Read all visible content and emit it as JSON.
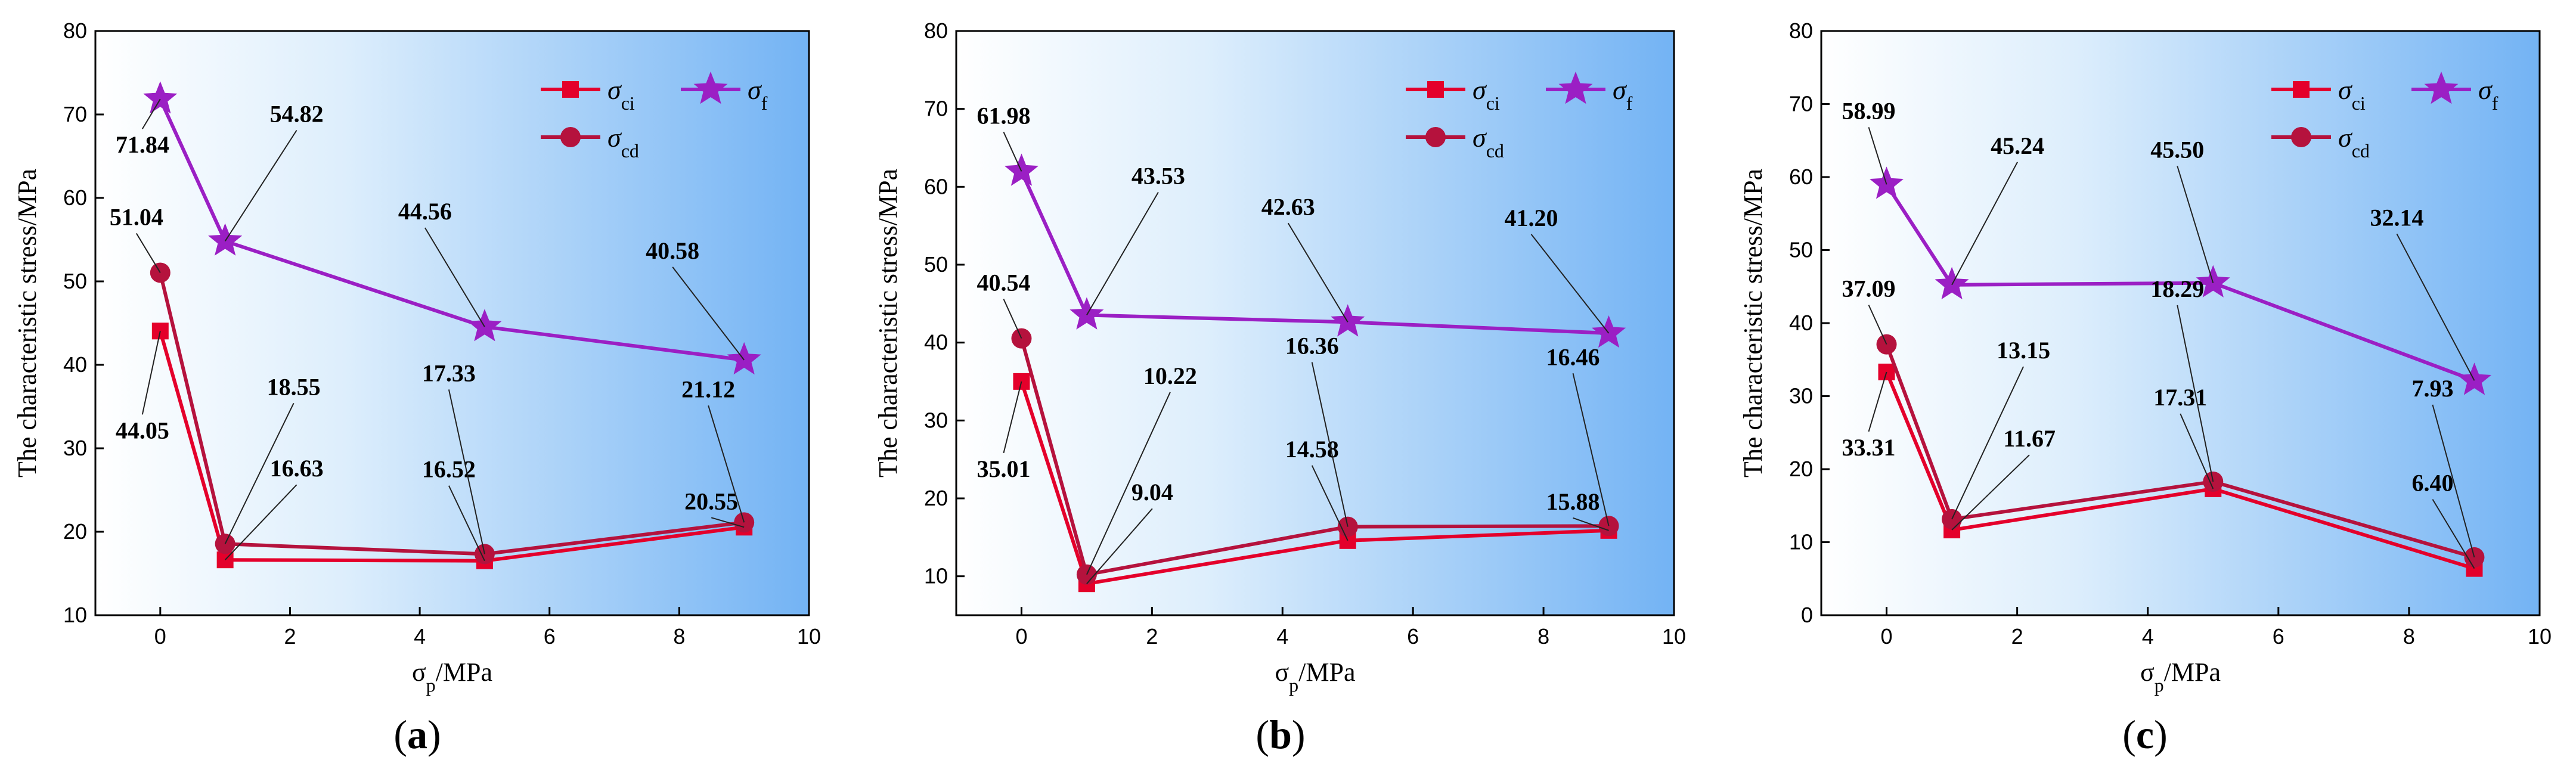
{
  "colors": {
    "sigma_ci": "#e4002b",
    "sigma_cd": "#b5123d",
    "sigma_f": "#9b1fc4",
    "bg_light": "#ffffff",
    "bg_dark": "#7ab8f5"
  },
  "chart_data": [
    {
      "type": "line",
      "panel_label": "a",
      "xlabel": "σp/MPa",
      "ylabel": "The characteristic stress/MPa",
      "xlim": [
        -1,
        10
      ],
      "ylim": [
        10,
        80
      ],
      "xticks": [
        "0",
        "2",
        "4",
        "6",
        "8",
        "10"
      ],
      "yticks": [
        "10",
        "20",
        "30",
        "40",
        "50",
        "60",
        "70",
        "80"
      ],
      "x": [
        0,
        1,
        5,
        9
      ],
      "series": [
        {
          "key": "ci",
          "name": "σci",
          "values": [
            44.05,
            16.63,
            16.52,
            20.55
          ],
          "labels": [
            "44.05",
            "16.63",
            "16.52",
            "20.55"
          ]
        },
        {
          "key": "cd",
          "name": "σcd",
          "values": [
            51.04,
            18.55,
            17.33,
            21.12
          ],
          "labels": [
            "51.04",
            "18.55",
            "17.33",
            "21.12"
          ]
        },
        {
          "key": "f",
          "name": "σf",
          "values": [
            71.84,
            54.82,
            44.56,
            40.58
          ],
          "labels": [
            "71.84",
            "54.82",
            "44.56",
            "40.58"
          ]
        }
      ]
    },
    {
      "type": "line",
      "panel_label": "b",
      "xlabel": "σp/MPa",
      "ylabel": "The characteristic stress/MPa",
      "xlim": [
        -1,
        10
      ],
      "ylim": [
        5,
        80
      ],
      "xticks": [
        "0",
        "2",
        "4",
        "6",
        "8",
        "10"
      ],
      "yticks": [
        "10",
        "20",
        "30",
        "40",
        "50",
        "60",
        "70",
        "80"
      ],
      "x": [
        0,
        1,
        5,
        9
      ],
      "series": [
        {
          "key": "ci",
          "name": "σci",
          "values": [
            35.01,
            9.04,
            14.58,
            15.88
          ],
          "labels": [
            "35.01",
            "9.04",
            "14.58",
            "15.88"
          ]
        },
        {
          "key": "cd",
          "name": "σcd",
          "values": [
            40.54,
            10.22,
            16.36,
            16.46
          ],
          "labels": [
            "40.54",
            "10.22",
            "16.36",
            "16.46"
          ]
        },
        {
          "key": "f",
          "name": "σf",
          "values": [
            61.98,
            43.53,
            42.63,
            41.2
          ],
          "labels": [
            "61.98",
            "43.53",
            "42.63",
            "41.20"
          ]
        }
      ]
    },
    {
      "type": "line",
      "panel_label": "c",
      "xlabel": "σp/MPa",
      "ylabel": "The characteristic stress/MPa",
      "xlim": [
        -1,
        10
      ],
      "ylim": [
        0,
        80
      ],
      "xticks": [
        "0",
        "2",
        "4",
        "6",
        "8",
        "10"
      ],
      "yticks": [
        "0",
        "10",
        "20",
        "30",
        "40",
        "50",
        "60",
        "70",
        "80"
      ],
      "x": [
        0,
        1,
        5,
        9
      ],
      "series": [
        {
          "key": "ci",
          "name": "σci",
          "values": [
            33.31,
            11.67,
            17.31,
            6.4
          ],
          "labels": [
            "33.31",
            "11.67",
            "17.31",
            "6.40"
          ]
        },
        {
          "key": "cd",
          "name": "σcd",
          "values": [
            37.09,
            13.15,
            18.29,
            7.93
          ],
          "labels": [
            "37.09",
            "13.15",
            "18.29",
            "7.93"
          ]
        },
        {
          "key": "f",
          "name": "σf",
          "values": [
            58.99,
            45.24,
            45.5,
            32.14
          ],
          "labels": [
            "58.99",
            "45.24",
            "45.50",
            "32.14"
          ]
        }
      ]
    }
  ]
}
